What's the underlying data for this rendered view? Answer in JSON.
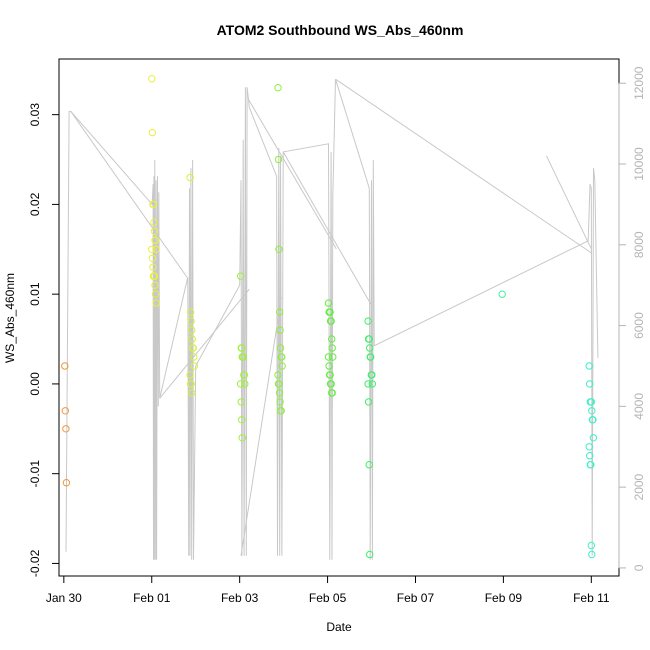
{
  "chart_data": {
    "type": "scatter",
    "title": "ATOM2 Southbound WS_Abs_460nm",
    "xlabel": "Date",
    "ylabel": "WS_Abs_460nm",
    "x_axis": {
      "unit": "days since Jan 28 00:00",
      "range": [
        1.89,
        14.63
      ],
      "ticks": [
        {
          "v": 2,
          "label": "Jan 30"
        },
        {
          "v": 4,
          "label": "Feb 01"
        },
        {
          "v": 6,
          "label": "Feb 03"
        },
        {
          "v": 8,
          "label": "Feb 05"
        },
        {
          "v": 10,
          "label": "Feb 07"
        },
        {
          "v": 12,
          "label": "Feb 09"
        },
        {
          "v": 14,
          "label": "Feb 11"
        }
      ]
    },
    "y_axis": {
      "range": [
        -0.0214,
        0.0362
      ],
      "ticks": [
        {
          "v": -0.02,
          "label": "-0.02"
        },
        {
          "v": -0.01,
          "label": "-0.01"
        },
        {
          "v": 0.0,
          "label": "0.00"
        },
        {
          "v": 0.01,
          "label": "0.01"
        },
        {
          "v": 0.02,
          "label": "0.02"
        },
        {
          "v": 0.03,
          "label": "0.03"
        }
      ]
    },
    "y2_axis": {
      "range": [
        -200,
        12600
      ],
      "ticks": [
        {
          "v": 0,
          "label": "0"
        },
        {
          "v": 2000,
          "label": "2000"
        },
        {
          "v": 4000,
          "label": "4000"
        },
        {
          "v": 6000,
          "label": "6000"
        },
        {
          "v": 8000,
          "label": "8000"
        },
        {
          "v": 10000,
          "label": "10000"
        },
        {
          "v": 12000,
          "label": "12000"
        }
      ]
    },
    "grid": false,
    "legend": "none",
    "point_groups": [
      {
        "color": "#f0963c",
        "x": 2.07,
        "y": [
          0.002,
          -0.003,
          -0.005,
          -0.011
        ]
      },
      {
        "color": "#e8f03c",
        "x": 4.05,
        "y": [
          0.034,
          0.028,
          0.02,
          0.02,
          0.018,
          0.017,
          0.016,
          0.016,
          0.015,
          0.015,
          0.014,
          0.013,
          0.012,
          0.012,
          0.012,
          0.011,
          0.01,
          0.009
        ]
      },
      {
        "color": "#d8f03c",
        "x": 4.92,
        "y": [
          0.023,
          0.008,
          0.007,
          0.006,
          0.005,
          0.004,
          0.004,
          0.003,
          0.002,
          0.001,
          0.0,
          0.0,
          -0.001
        ]
      },
      {
        "color": "#a0f03c",
        "x": 6.07,
        "y": [
          0.012,
          0.004,
          0.004,
          0.003,
          0.003,
          0.003,
          0.001,
          0.001,
          0.0,
          0.0,
          -0.002,
          -0.004,
          -0.006
        ]
      },
      {
        "color": "#8cf03c",
        "x": 6.92,
        "y": [
          0.033,
          0.025,
          0.015,
          0.008,
          0.006,
          0.004,
          0.003,
          0.003,
          0.002,
          0.001,
          0.0,
          0.0,
          -0.001,
          -0.002,
          -0.003,
          -0.003
        ]
      },
      {
        "color": "#5ff03c",
        "x": 8.07,
        "y": [
          0.009,
          0.008,
          0.008,
          0.008,
          0.007,
          0.007,
          0.005,
          0.004,
          0.003,
          0.003,
          0.002,
          0.001,
          0.001,
          0.0,
          0.0,
          -0.001,
          -0.001
        ]
      },
      {
        "color": "#3cf06a",
        "x": 8.97,
        "y": [
          0.007,
          0.005,
          0.005,
          0.004,
          0.003,
          0.003,
          0.001,
          0.001,
          0.0,
          0.0,
          -0.002,
          -0.009,
          -0.019
        ]
      },
      {
        "color": "#3cf0a0",
        "x": 12.02,
        "y": [
          0.01
        ]
      },
      {
        "color": "#3cf0c8",
        "x": 14.0,
        "y": [
          0.002,
          0.0,
          -0.002,
          -0.002,
          -0.002,
          -0.003,
          -0.004,
          -0.004,
          -0.006,
          -0.007,
          -0.008,
          -0.009,
          -0.009,
          -0.018,
          -0.019
        ]
      }
    ],
    "line_series": {
      "name": "secondary",
      "axis": "y2",
      "color": "#c8c8c8",
      "points": [
        [
          2.05,
          400
        ],
        [
          2.12,
          11300
        ],
        [
          2.16,
          11300
        ],
        [
          4.01,
          9000
        ],
        [
          4.03,
          9500
        ],
        [
          4.04,
          200
        ],
        [
          4.05,
          9700
        ],
        [
          4.06,
          200
        ],
        [
          4.07,
          10100
        ],
        [
          4.09,
          200
        ],
        [
          4.1,
          9600
        ],
        [
          4.11,
          200
        ],
        [
          4.13,
          9700
        ],
        [
          4.15,
          4000
        ],
        [
          4.16,
          9300
        ],
        [
          4.18,
          4200
        ],
        [
          4.82,
          7200
        ],
        [
          4.84,
          300
        ],
        [
          4.86,
          9400
        ],
        [
          4.87,
          300
        ],
        [
          4.89,
          9900
        ],
        [
          4.91,
          200
        ],
        [
          4.93,
          10100
        ],
        [
          4.95,
          200
        ],
        [
          5.0,
          5000
        ],
        [
          6.0,
          7000
        ],
        [
          6.03,
          9600
        ],
        [
          6.05,
          300
        ],
        [
          6.08,
          10600
        ],
        [
          6.1,
          300
        ],
        [
          6.13,
          11900
        ],
        [
          6.15,
          300
        ],
        [
          6.17,
          11900
        ],
        [
          6.2,
          11600
        ],
        [
          6.22,
          11400
        ],
        [
          6.84,
          9700
        ],
        [
          6.86,
          300
        ],
        [
          6.89,
          10400
        ],
        [
          6.91,
          300
        ],
        [
          6.93,
          10200
        ],
        [
          6.96,
          300
        ],
        [
          6.99,
          10300
        ],
        [
          8.02,
          10500
        ],
        [
          8.05,
          200
        ],
        [
          8.08,
          10300
        ],
        [
          8.1,
          200
        ],
        [
          8.12,
          9200
        ],
        [
          8.18,
          12100
        ],
        [
          8.95,
          9400
        ],
        [
          8.97,
          200
        ],
        [
          9.0,
          9600
        ],
        [
          9.02,
          200
        ],
        [
          9.04,
          10100
        ],
        [
          9.06,
          5500
        ],
        [
          13.93,
          8100
        ],
        [
          13.97,
          9500
        ],
        [
          14.0,
          9400
        ],
        [
          14.02,
          300
        ],
        [
          14.05,
          9900
        ],
        [
          14.08,
          9600
        ],
        [
          14.15,
          5200
        ]
      ],
      "extra_segments": [
        [
          [
            4.18,
            4200
          ],
          [
            6.22,
            6900
          ]
        ],
        [
          [
            2.16,
            11300
          ],
          [
            4.8,
            7200
          ]
        ],
        [
          [
            6.2,
            11600
          ],
          [
            8.2,
            7900
          ]
        ],
        [
          [
            8.18,
            12100
          ],
          [
            14.0,
            7800
          ]
        ],
        [
          [
            6.99,
            10300
          ],
          [
            9.0,
            6500
          ]
        ],
        [
          [
            6.03,
            300
          ],
          [
            6.95,
            6700
          ]
        ],
        [
          [
            12.98,
            10200
          ],
          [
            14.0,
            7900
          ]
        ]
      ]
    }
  }
}
